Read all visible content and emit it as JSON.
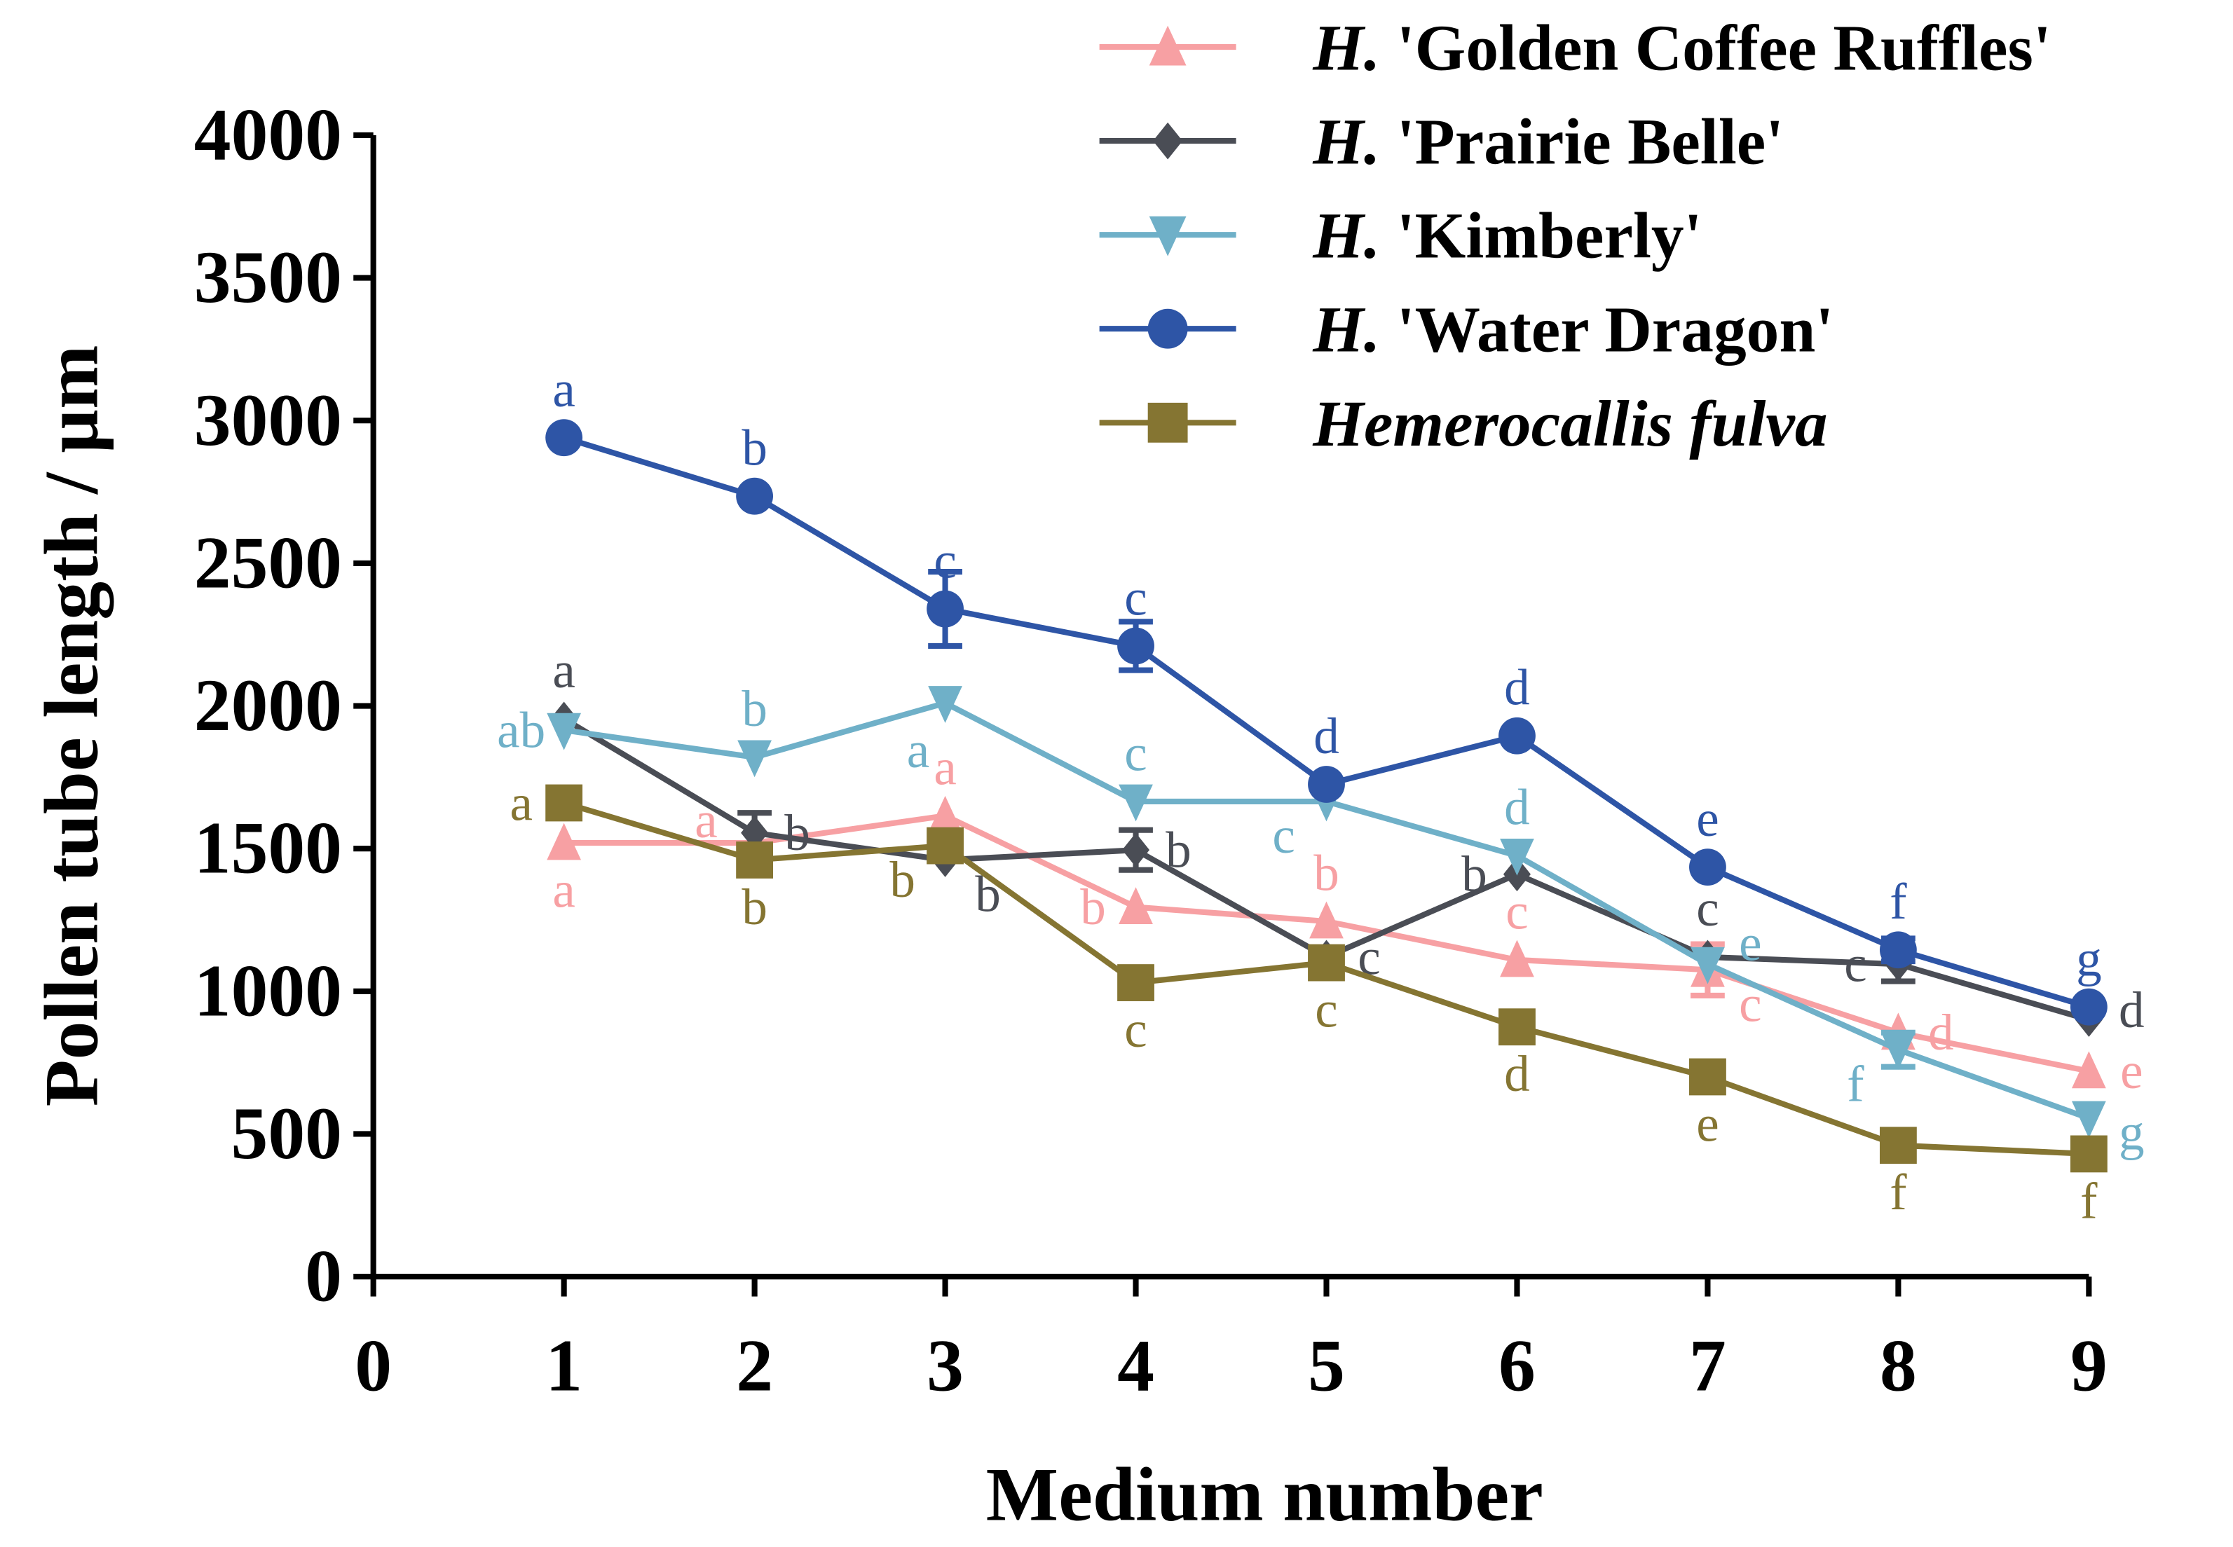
{
  "chart_data": {
    "type": "line",
    "title": "",
    "xlabel": "Medium number",
    "ylabel": "Pollen tube length / µm",
    "xlim": [
      0,
      9
    ],
    "ylim": [
      0,
      4000
    ],
    "x_ticks": [
      "0",
      "1",
      "2",
      "3",
      "4",
      "5",
      "6",
      "7",
      "8",
      "9"
    ],
    "y_ticks": [
      "0",
      "500",
      "1000",
      "1500",
      "2000",
      "2500",
      "3000",
      "3500",
      "4000"
    ],
    "x": [
      1,
      2,
      3,
      4,
      5,
      6,
      7,
      8,
      9
    ],
    "grid": false,
    "legend_position": "top-right",
    "series": [
      {
        "prefix": "H.",
        "name": " 'Golden Coffee Ruffles'",
        "color": "#F7A0A3",
        "marker": "triangle-up",
        "values": [
          1520,
          1520,
          1615,
          1295,
          1245,
          1110,
          1075,
          855,
          720
        ],
        "error": [
          0,
          0,
          0,
          0,
          0,
          0,
          90,
          0,
          0
        ],
        "letters": [
          "a",
          "a",
          "a",
          "b",
          "b",
          "c",
          "c",
          "d",
          "e"
        ],
        "letter_pos": [
          "below",
          "upleft",
          "above",
          "left",
          "above",
          "above",
          "downright",
          "right",
          "right"
        ]
      },
      {
        "prefix": "H.",
        "name": " 'Prairie Belle'",
        "color": "#4A4D55",
        "marker": "diamond",
        "values": [
          1955,
          1555,
          1460,
          1495,
          1120,
          1410,
          1120,
          1095,
          900
        ],
        "error": [
          0,
          70,
          0,
          70,
          0,
          0,
          0,
          60,
          0
        ],
        "letters": [
          "a",
          "b",
          "b",
          "b",
          "c",
          "b",
          "c",
          "c",
          "d"
        ],
        "letter_pos": [
          "above",
          "right",
          "downright",
          "right",
          "right",
          "left",
          "above",
          "left",
          "right"
        ]
      },
      {
        "prefix": "H.",
        "name": " 'Kimberly'",
        "color": "#6FB0C8",
        "marker": "triangle-down",
        "values": [
          1915,
          1820,
          2010,
          1665,
          1665,
          1475,
          1095,
          795,
          555
        ],
        "error": [
          0,
          0,
          0,
          0,
          0,
          0,
          0,
          60,
          0
        ],
        "letters": [
          "ab",
          "b",
          "a",
          "c",
          "c",
          "d",
          "e",
          "f",
          "g"
        ],
        "letter_pos": [
          "left",
          "above",
          "below",
          "above",
          "downleft",
          "above",
          "right",
          "downleft",
          "right"
        ]
      },
      {
        "prefix": "H.",
        "name": " 'Water Dragon'",
        "color": "#2E55A6",
        "marker": "circle",
        "values": [
          2940,
          2735,
          2340,
          2210,
          1725,
          1895,
          1435,
          1145,
          945
        ],
        "error": [
          0,
          0,
          130,
          85,
          0,
          0,
          0,
          40,
          0
        ],
        "letters": [
          "a",
          "b",
          "c",
          "c",
          "d",
          "d",
          "e",
          "f",
          "g"
        ],
        "letter_pos": [
          "above",
          "above",
          "above",
          "above",
          "above",
          "above",
          "above",
          "above",
          "above"
        ]
      },
      {
        "prefix": "",
        "name": "Hemerocallis fulva",
        "color": "#857532",
        "marker": "square",
        "values": [
          1660,
          1460,
          1510,
          1030,
          1100,
          875,
          700,
          460,
          430
        ],
        "error": [
          0,
          0,
          0,
          0,
          0,
          0,
          0,
          0,
          0
        ],
        "letters": [
          "a",
          "b",
          "b",
          "c",
          "c",
          "d",
          "e",
          "f",
          "f"
        ],
        "letter_pos": [
          "left",
          "below",
          "downleft",
          "below",
          "below",
          "below",
          "below",
          "below",
          "below"
        ]
      }
    ]
  }
}
